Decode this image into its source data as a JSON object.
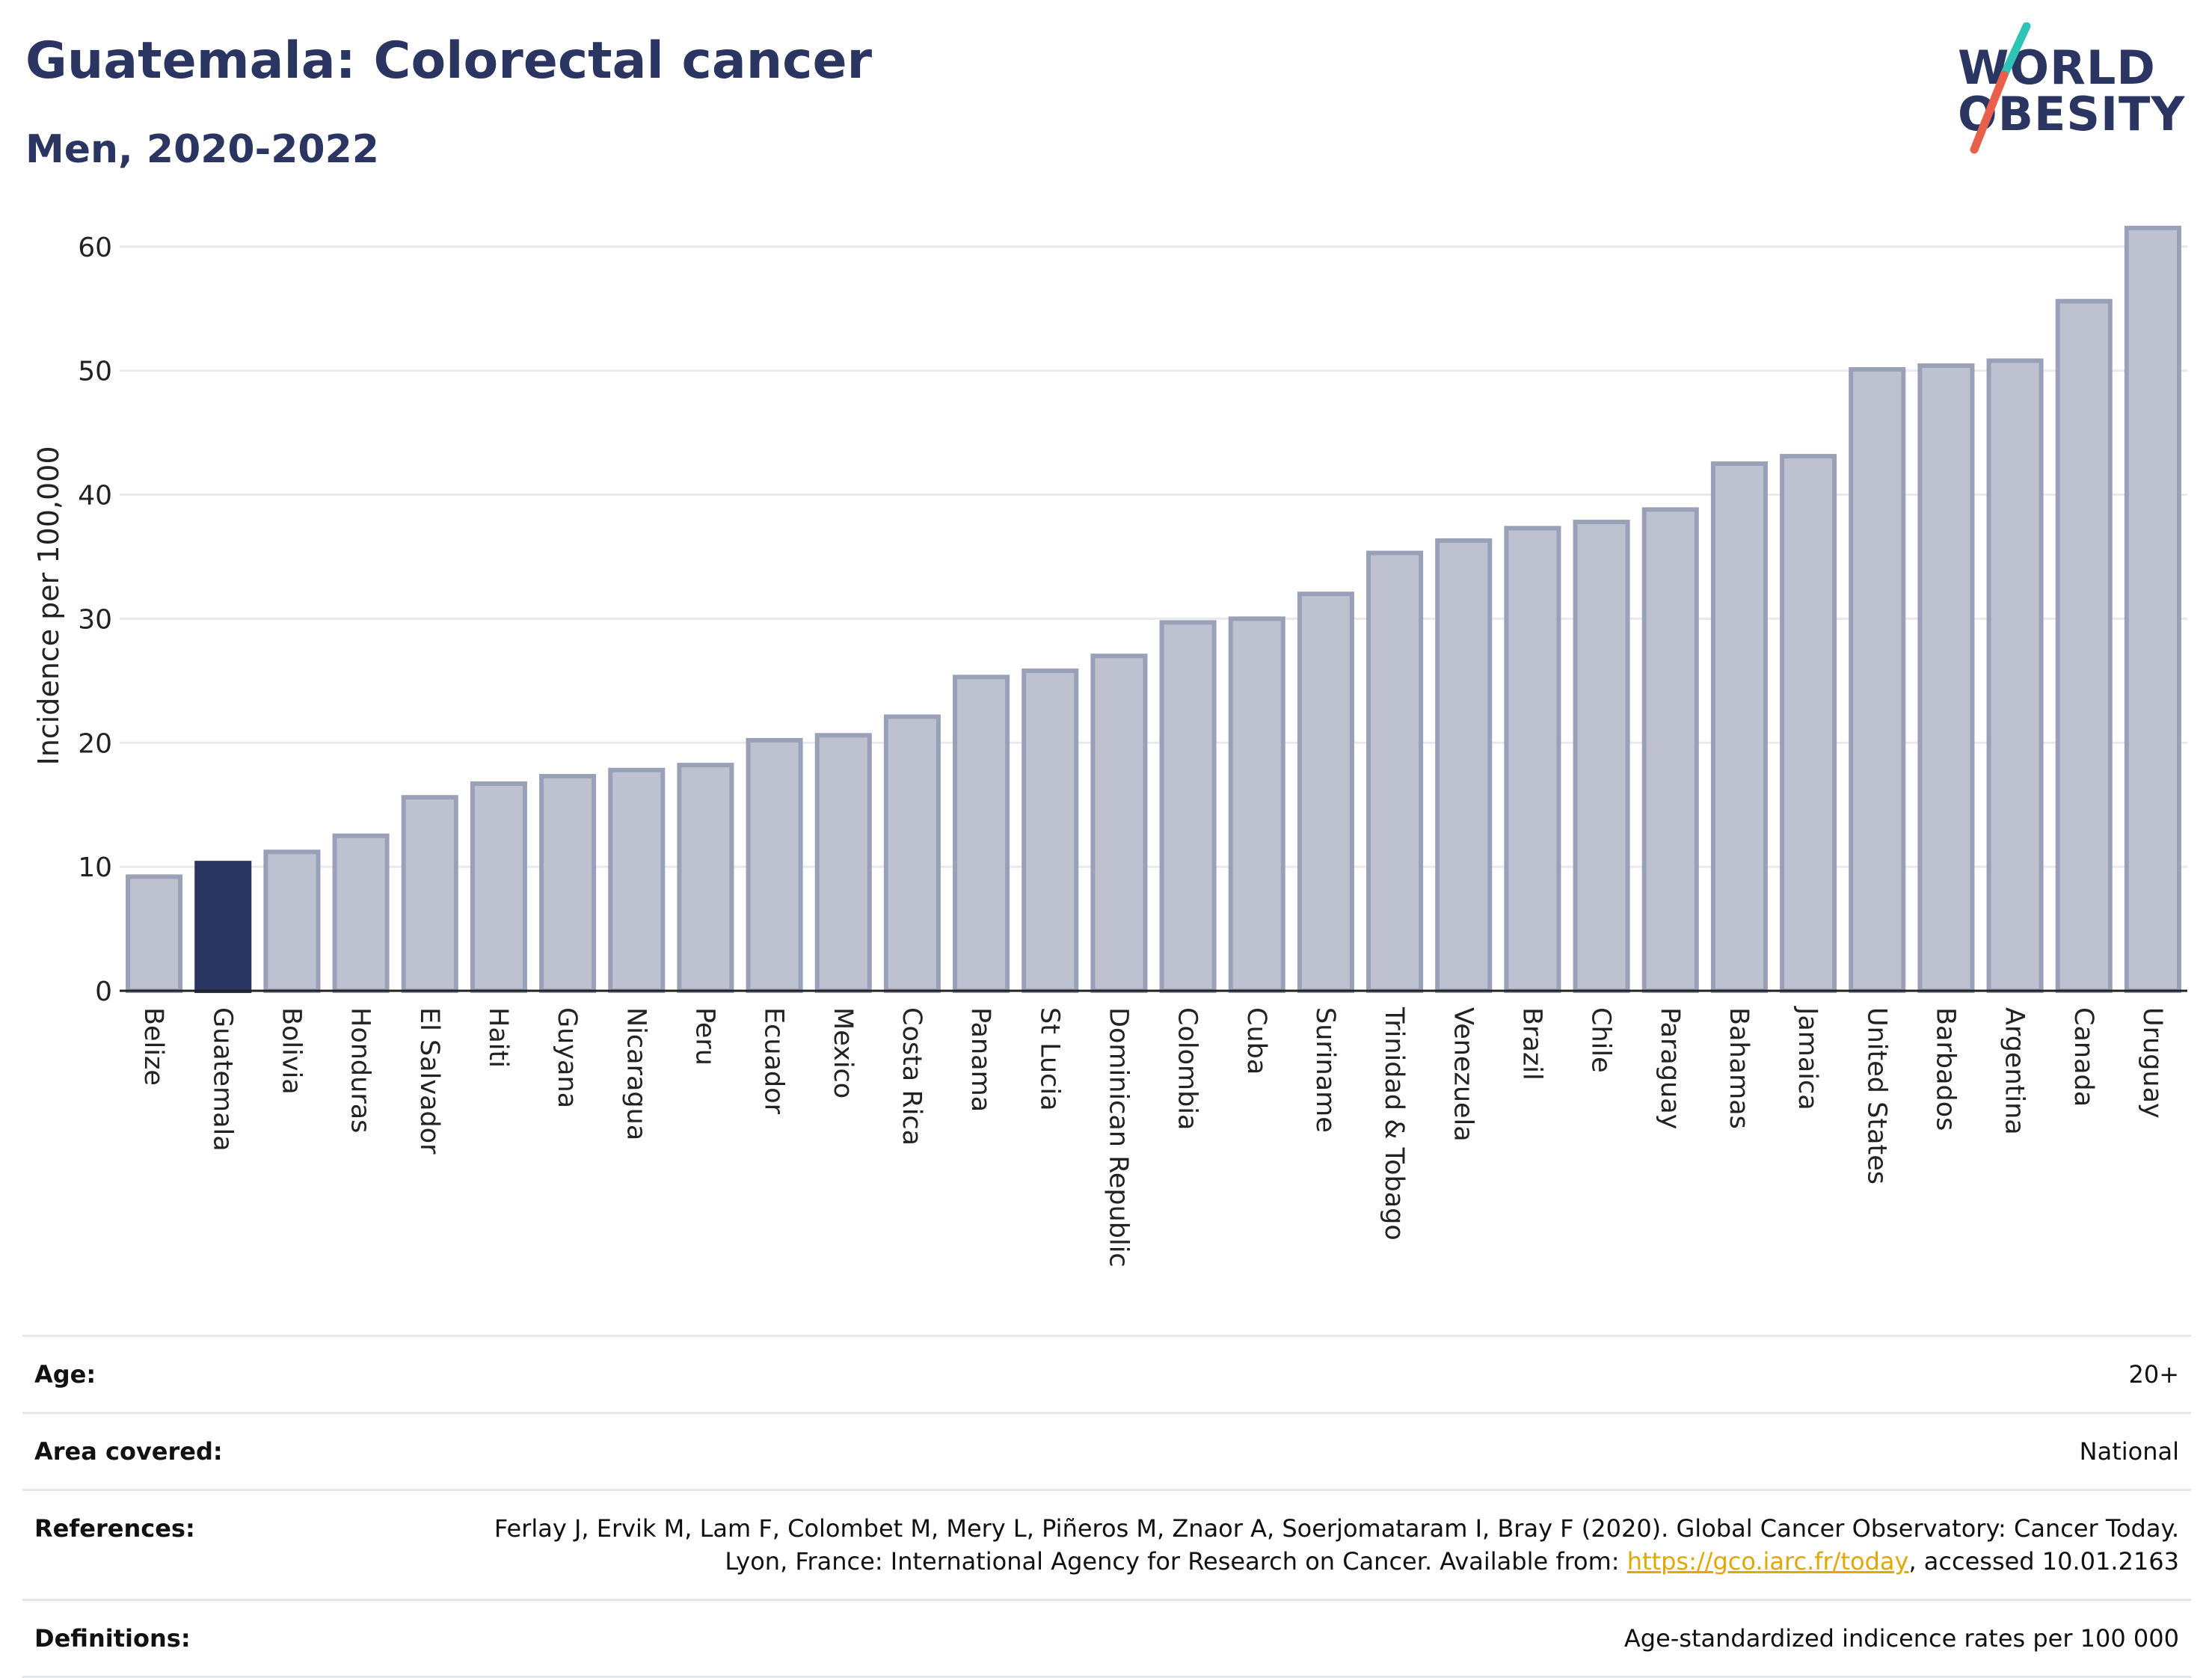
{
  "header": {
    "title": "Guatemala: Colorectal cancer",
    "subtitle": "Men, 2020-2022"
  },
  "logo": {
    "line1": "WORLD",
    "line2": "OBESITY",
    "colors": {
      "text": "#2b3561",
      "slash_top": "#2ec4b6",
      "slash_bottom": "#e8604c"
    }
  },
  "chart_data": {
    "type": "bar",
    "ylabel": "Incidence per 100,000",
    "xlabel": "",
    "ylim": [
      0,
      63
    ],
    "yticks": [
      0,
      10,
      20,
      30,
      40,
      50,
      60
    ],
    "grid": true,
    "highlight": "Guatemala",
    "colors": {
      "bar": "#bec2d0",
      "bar_stroke": "#9aa0b8",
      "highlight": "#2b3561"
    },
    "categories": [
      "Belize",
      "Guatemala",
      "Bolivia",
      "Honduras",
      "El Salvador",
      "Haiti",
      "Guyana",
      "Nicaragua",
      "Peru",
      "Ecuador",
      "Mexico",
      "Costa Rica",
      "Panama",
      "St Lucia",
      "Dominican Republic",
      "Colombia",
      "Cuba",
      "Suriname",
      "Trinidad & Tobago",
      "Venezuela",
      "Brazil",
      "Chile",
      "Paraguay",
      "Bahamas",
      "Jamaica",
      "United States",
      "Barbados",
      "Argentina",
      "Canada",
      "Uruguay"
    ],
    "values": [
      9.2,
      10.3,
      11.2,
      12.5,
      15.6,
      16.7,
      17.3,
      17.8,
      18.2,
      20.2,
      20.6,
      22.1,
      25.3,
      25.8,
      27.0,
      29.7,
      30.0,
      32.0,
      35.3,
      36.3,
      37.3,
      37.8,
      38.8,
      42.5,
      43.1,
      50.1,
      50.4,
      50.8,
      55.6,
      61.5
    ]
  },
  "info": {
    "age": {
      "label": "Age:",
      "value": "20+"
    },
    "area": {
      "label": "Area covered:",
      "value": "National"
    },
    "references": {
      "label": "References:",
      "text_before": "Ferlay J, Ervik M, Lam F, Colombet M, Mery L, Piñeros M, Znaor A, Soerjomataram I, Bray F (2020). Global Cancer Observatory: Cancer Today. Lyon, France: International Agency for Research on Cancer. Available from: ",
      "link": "https://gco.iarc.fr/today",
      "text_after": ", accessed 10.01.2163"
    },
    "definitions": {
      "label": "Definitions:",
      "value": "Age-standardized indicence rates per 100 000"
    }
  }
}
